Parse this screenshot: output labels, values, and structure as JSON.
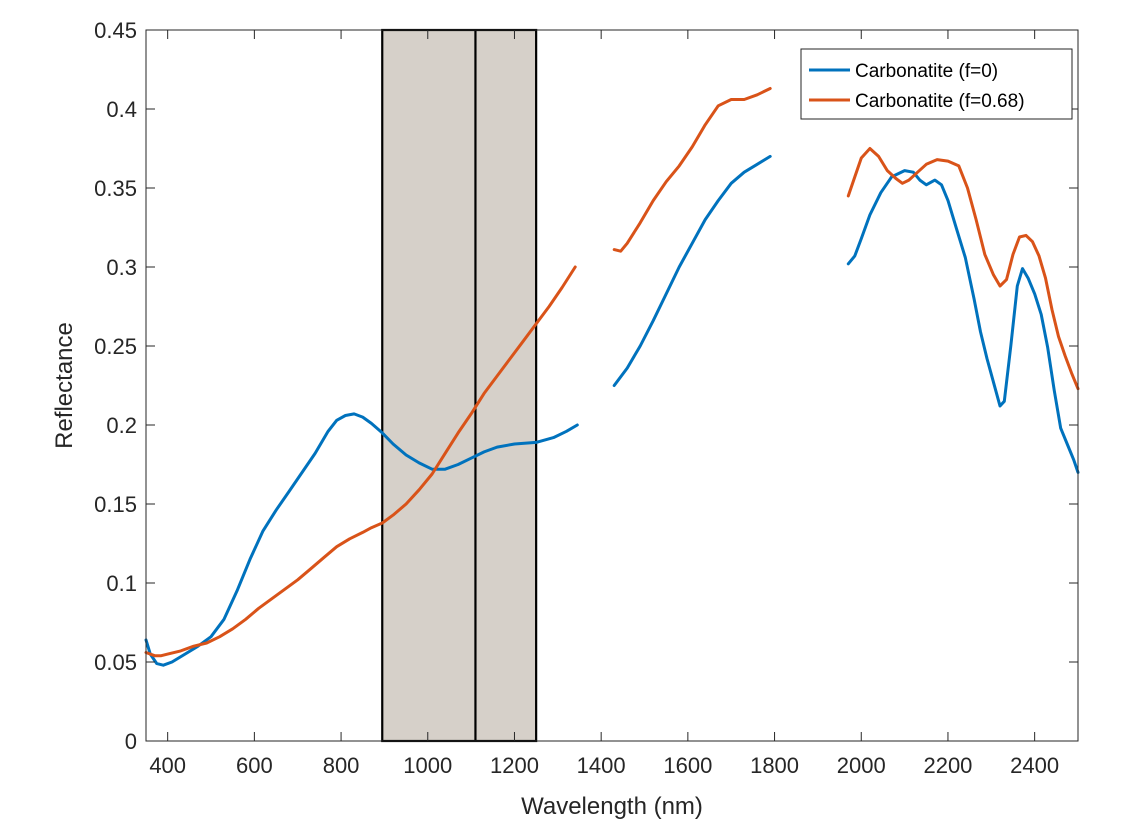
{
  "chart_data": {
    "type": "line",
    "title": "",
    "xlabel": "Wavelength (nm)",
    "ylabel": "Reflectance",
    "xlim": [
      350,
      2500
    ],
    "ylim": [
      0,
      0.45
    ],
    "xticks": [
      400,
      600,
      800,
      1000,
      1200,
      1400,
      1600,
      1800,
      2000,
      2200,
      2400
    ],
    "xtick_labels": [
      "400",
      "600",
      "800",
      "1000",
      "1200",
      "1400",
      "1600",
      "1800",
      "2000",
      "2200",
      "2400"
    ],
    "yticks": [
      0,
      0.05,
      0.1,
      0.15,
      0.2,
      0.25,
      0.3,
      0.35,
      0.4,
      0.45
    ],
    "ytick_labels": [
      "0",
      "0.05",
      "0.1",
      "0.15",
      "0.2",
      "0.25",
      "0.3",
      "0.35",
      "0.4",
      "0.45"
    ],
    "grid": false,
    "legend_position": "top-right",
    "shaded_band": {
      "x_range": [
        895,
        1250
      ],
      "divider_x": 1110,
      "color": "#d6d0c9"
    },
    "series": [
      {
        "name": "Carbonatite (f=0)",
        "color": "#0072bd",
        "segments": [
          [
            [
              350,
              0.064
            ],
            [
              360,
              0.055
            ],
            [
              375,
              0.049
            ],
            [
              390,
              0.048
            ],
            [
              410,
              0.05
            ],
            [
              440,
              0.055
            ],
            [
              470,
              0.06
            ],
            [
              500,
              0.066
            ],
            [
              530,
              0.077
            ],
            [
              560,
              0.095
            ],
            [
              590,
              0.115
            ],
            [
              620,
              0.133
            ],
            [
              650,
              0.146
            ],
            [
              680,
              0.158
            ],
            [
              710,
              0.17
            ],
            [
              740,
              0.182
            ],
            [
              770,
              0.196
            ],
            [
              790,
              0.203
            ],
            [
              810,
              0.206
            ],
            [
              830,
              0.207
            ],
            [
              850,
              0.205
            ],
            [
              870,
              0.201
            ],
            [
              895,
              0.195
            ],
            [
              920,
              0.188
            ],
            [
              950,
              0.181
            ],
            [
              980,
              0.176
            ],
            [
              1010,
              0.172
            ],
            [
              1040,
              0.172
            ],
            [
              1070,
              0.175
            ],
            [
              1100,
              0.179
            ],
            [
              1130,
              0.183
            ],
            [
              1160,
              0.186
            ],
            [
              1200,
              0.188
            ],
            [
              1250,
              0.189
            ],
            [
              1290,
              0.192
            ],
            [
              1320,
              0.196
            ],
            [
              1345,
              0.2
            ]
          ],
          [
            [
              1430,
              0.225
            ],
            [
              1460,
              0.236
            ],
            [
              1490,
              0.25
            ],
            [
              1520,
              0.266
            ],
            [
              1550,
              0.283
            ],
            [
              1580,
              0.3
            ],
            [
              1610,
              0.315
            ],
            [
              1640,
              0.33
            ],
            [
              1670,
              0.342
            ],
            [
              1700,
              0.353
            ],
            [
              1730,
              0.36
            ],
            [
              1760,
              0.365
            ],
            [
              1790,
              0.37
            ]
          ],
          [
            [
              1970,
              0.302
            ],
            [
              1985,
              0.307
            ],
            [
              2000,
              0.318
            ],
            [
              2020,
              0.333
            ],
            [
              2045,
              0.347
            ],
            [
              2070,
              0.357
            ],
            [
              2100,
              0.361
            ],
            [
              2120,
              0.36
            ],
            [
              2135,
              0.355
            ],
            [
              2150,
              0.352
            ],
            [
              2170,
              0.355
            ],
            [
              2185,
              0.352
            ],
            [
              2200,
              0.342
            ],
            [
              2220,
              0.324
            ],
            [
              2240,
              0.306
            ],
            [
              2260,
              0.28
            ],
            [
              2275,
              0.259
            ],
            [
              2290,
              0.242
            ],
            [
              2305,
              0.227
            ],
            [
              2320,
              0.212
            ],
            [
              2330,
              0.215
            ],
            [
              2345,
              0.25
            ],
            [
              2360,
              0.288
            ],
            [
              2372,
              0.299
            ],
            [
              2385,
              0.293
            ],
            [
              2400,
              0.283
            ],
            [
              2415,
              0.27
            ],
            [
              2430,
              0.249
            ],
            [
              2445,
              0.222
            ],
            [
              2460,
              0.198
            ],
            [
              2475,
              0.188
            ],
            [
              2490,
              0.178
            ],
            [
              2500,
              0.17
            ]
          ]
        ]
      },
      {
        "name": "Carbonatite (f=0.68)",
        "color": "#d95319",
        "segments": [
          [
            [
              350,
              0.056
            ],
            [
              370,
              0.054
            ],
            [
              385,
              0.054
            ],
            [
              400,
              0.055
            ],
            [
              430,
              0.057
            ],
            [
              460,
              0.06
            ],
            [
              490,
              0.062
            ],
            [
              520,
              0.066
            ],
            [
              550,
              0.071
            ],
            [
              580,
              0.077
            ],
            [
              610,
              0.084
            ],
            [
              640,
              0.09
            ],
            [
              670,
              0.096
            ],
            [
              700,
              0.102
            ],
            [
              730,
              0.109
            ],
            [
              760,
              0.116
            ],
            [
              790,
              0.123
            ],
            [
              820,
              0.128
            ],
            [
              850,
              0.132
            ],
            [
              870,
              0.135
            ],
            [
              895,
              0.138
            ],
            [
              920,
              0.143
            ],
            [
              950,
              0.15
            ],
            [
              980,
              0.159
            ],
            [
              1010,
              0.169
            ],
            [
              1040,
              0.182
            ],
            [
              1070,
              0.195
            ],
            [
              1100,
              0.207
            ],
            [
              1130,
              0.22
            ],
            [
              1160,
              0.231
            ],
            [
              1190,
              0.242
            ],
            [
              1220,
              0.253
            ],
            [
              1250,
              0.264
            ],
            [
              1280,
              0.275
            ],
            [
              1310,
              0.287
            ],
            [
              1340,
              0.3
            ]
          ],
          [
            [
              1430,
              0.311
            ],
            [
              1445,
              0.31
            ],
            [
              1460,
              0.315
            ],
            [
              1490,
              0.328
            ],
            [
              1520,
              0.342
            ],
            [
              1550,
              0.354
            ],
            [
              1580,
              0.364
            ],
            [
              1610,
              0.376
            ],
            [
              1640,
              0.39
            ],
            [
              1670,
              0.402
            ],
            [
              1700,
              0.406
            ],
            [
              1730,
              0.406
            ],
            [
              1760,
              0.409
            ],
            [
              1790,
              0.413
            ]
          ],
          [
            [
              1970,
              0.345
            ],
            [
              1985,
              0.357
            ],
            [
              2000,
              0.369
            ],
            [
              2020,
              0.375
            ],
            [
              2040,
              0.37
            ],
            [
              2060,
              0.361
            ],
            [
              2080,
              0.356
            ],
            [
              2095,
              0.353
            ],
            [
              2110,
              0.355
            ],
            [
              2130,
              0.36
            ],
            [
              2150,
              0.365
            ],
            [
              2175,
              0.368
            ],
            [
              2200,
              0.367
            ],
            [
              2225,
              0.364
            ],
            [
              2245,
              0.35
            ],
            [
              2265,
              0.33
            ],
            [
              2285,
              0.308
            ],
            [
              2305,
              0.295
            ],
            [
              2320,
              0.288
            ],
            [
              2335,
              0.292
            ],
            [
              2350,
              0.308
            ],
            [
              2365,
              0.319
            ],
            [
              2380,
              0.32
            ],
            [
              2395,
              0.316
            ],
            [
              2410,
              0.307
            ],
            [
              2425,
              0.293
            ],
            [
              2440,
              0.273
            ],
            [
              2455,
              0.256
            ],
            [
              2470,
              0.244
            ],
            [
              2485,
              0.233
            ],
            [
              2500,
              0.223
            ]
          ]
        ]
      }
    ]
  }
}
